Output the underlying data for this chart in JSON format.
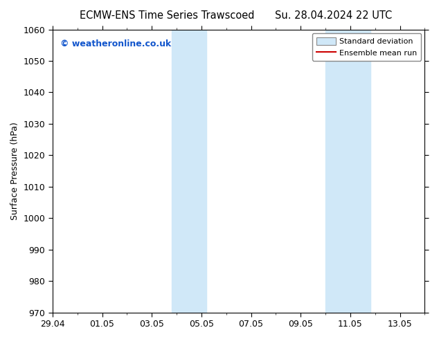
{
  "title_left": "ECMW-ENS Time Series Trawscoed",
  "title_right": "Su. 28.04.2024 22 UTC",
  "ylabel": "Surface Pressure (hPa)",
  "ylim": [
    970,
    1060
  ],
  "yticks": [
    970,
    980,
    990,
    1000,
    1010,
    1020,
    1030,
    1040,
    1050,
    1060
  ],
  "xlim": [
    0,
    15.0
  ],
  "xtick_labels": [
    "29.04",
    "01.05",
    "03.05",
    "05.05",
    "07.05",
    "09.05",
    "11.05",
    "13.05"
  ],
  "xtick_positions": [
    0,
    2,
    4,
    6,
    8,
    10,
    12,
    14
  ],
  "shade_bands": [
    {
      "x_start": 4.8,
      "x_end": 5.5
    },
    {
      "x_start": 5.5,
      "x_end": 6.2
    },
    {
      "x_start": 11.0,
      "x_end": 11.8
    },
    {
      "x_start": 11.8,
      "x_end": 12.8
    }
  ],
  "shade_color": "#d0e8f8",
  "watermark": "© weatheronline.co.uk",
  "watermark_color": "#1155cc",
  "legend_std_color": "#d0e8f8",
  "legend_mean_color": "#cc0000",
  "bg_color": "#ffffff",
  "plot_bg_color": "#ffffff",
  "title_fontsize": 10.5,
  "axis_fontsize": 9,
  "tick_fontsize": 9
}
